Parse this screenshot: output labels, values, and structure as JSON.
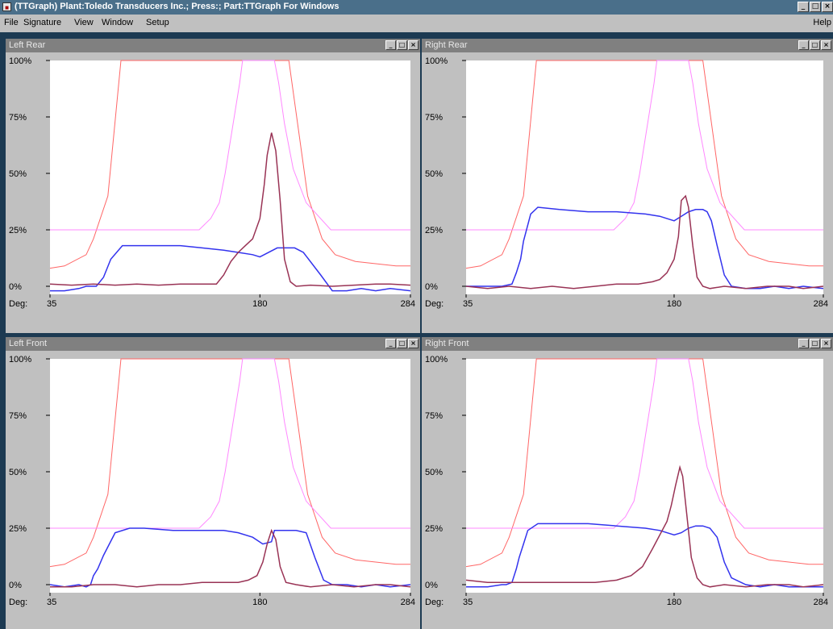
{
  "window": {
    "title": "(TTGraph) Plant:Toledo Transducers Inc.; Press:; Part:TTGraph For Windows",
    "controls": [
      "_",
      "□",
      "×"
    ]
  },
  "menu": {
    "items": [
      "File",
      "Signature",
      "View",
      "Window",
      "Setup"
    ],
    "help": "Help"
  },
  "colors": {
    "limit_curve": "#ff6666",
    "envelope_curve": "#ff88ff",
    "signature_a": "#3333ee",
    "signature_b": "#993355"
  },
  "axis": {
    "y_ticks": [
      "100%",
      "75%",
      "50%",
      "25%",
      "0%"
    ],
    "x_prefix": "Deg:",
    "x_ticks": [
      "35",
      "180",
      "284"
    ]
  },
  "panels": [
    {
      "title": "Left Rear",
      "chart_data": {
        "type": "line",
        "xlim": [
          35,
          284
        ],
        "ylim": [
          0,
          100
        ],
        "series": [
          {
            "role": "limit",
            "x": [
              35,
              45,
              60,
              65,
              75,
              84,
              200,
              213,
              223,
              232,
              246,
              260,
              274,
              284
            ],
            "y": [
              8,
              9,
              14,
              21,
              40,
              100,
              100,
              40,
              21,
              14,
              11,
              10,
              9,
              9
            ]
          },
          {
            "role": "envelope",
            "x": [
              35,
              138,
              146,
              152,
              156,
              161,
              166,
              168,
              190,
              193,
              197,
              203,
              212,
              229,
              284
            ],
            "y": [
              25,
              25,
              30,
              37,
              50,
              70,
              90,
              100,
              100,
              90,
              72,
              52,
              37,
              25,
              25
            ]
          },
          {
            "role": "signature_a",
            "x": [
              35,
              45,
              55,
              60,
              67,
              72,
              77,
              85,
              100,
              125,
              140,
              155,
              165,
              175,
              180,
              192,
              198,
              204,
              210,
              222,
              230,
              240,
              250,
              260,
              270,
              284
            ],
            "y": [
              -2,
              -2,
              -1,
              0,
              0,
              4,
              12,
              18,
              18,
              18,
              17,
              16,
              15,
              14,
              13,
              17,
              17,
              17,
              15,
              5,
              -2,
              -2,
              -1,
              -2,
              -1,
              -2
            ]
          },
          {
            "role": "signature_b",
            "x": [
              35,
              50,
              65,
              80,
              95,
              110,
              125,
              140,
              150,
              155,
              160,
              165,
              170,
              175,
              180,
              183,
              185,
              188,
              191,
              194,
              197,
              201,
              205,
              215,
              230,
              245,
              260,
              270,
              284
            ],
            "y": [
              1,
              0.5,
              1,
              0.5,
              1,
              0.5,
              1,
              1,
              1,
              5,
              11,
              15,
              18,
              21,
              30,
              45,
              58,
              68,
              60,
              38,
              12,
              2,
              0,
              0.5,
              0,
              0.5,
              1,
              1,
              0.5
            ]
          }
        ]
      }
    },
    {
      "title": "Right Rear",
      "chart_data": {
        "type": "line",
        "xlim": [
          35,
          284
        ],
        "ylim": [
          0,
          100
        ],
        "series": [
          {
            "role": "limit",
            "x": [
              35,
              45,
              60,
              65,
              75,
              84,
              200,
              213,
              223,
              232,
              246,
              260,
              274,
              284
            ],
            "y": [
              8,
              9,
              14,
              21,
              40,
              100,
              100,
              40,
              21,
              14,
              11,
              10,
              9,
              9
            ]
          },
          {
            "role": "envelope",
            "x": [
              35,
              138,
              146,
              152,
              156,
              161,
              166,
              168,
              190,
              193,
              197,
              203,
              212,
              229,
              284
            ],
            "y": [
              25,
              25,
              30,
              37,
              50,
              70,
              90,
              100,
              100,
              90,
              72,
              52,
              37,
              25,
              25
            ]
          },
          {
            "role": "signature_a",
            "x": [
              35,
              50,
              60,
              67,
              70,
              73,
              75,
              80,
              85,
              100,
              120,
              140,
              160,
              170,
              180,
              185,
              190,
              195,
              200,
              203,
              206,
              210,
              215,
              220,
              230,
              240,
              250,
              260,
              270,
              284
            ],
            "y": [
              0,
              0,
              0,
              1,
              6,
              12,
              20,
              32,
              35,
              34,
              33,
              33,
              32,
              31,
              29,
              31,
              33,
              34,
              34,
              33,
              29,
              18,
              5,
              0,
              -1,
              -1,
              0,
              -1,
              0,
              -1
            ]
          },
          {
            "role": "signature_b",
            "x": [
              35,
              50,
              65,
              80,
              95,
              110,
              125,
              140,
              155,
              165,
              170,
              175,
              180,
              183,
              185,
              188,
              190,
              193,
              196,
              200,
              205,
              215,
              230,
              245,
              260,
              270,
              284
            ],
            "y": [
              0,
              -1,
              0,
              -1,
              0,
              -1,
              0,
              1,
              1,
              2,
              3,
              6,
              12,
              22,
              38,
              40,
              35,
              18,
              4,
              0,
              -1,
              0,
              -1,
              0,
              0,
              -1,
              0
            ]
          }
        ]
      }
    },
    {
      "title": "Left Front",
      "chart_data": {
        "type": "line",
        "xlim": [
          35,
          284
        ],
        "ylim": [
          0,
          100
        ],
        "series": [
          {
            "role": "limit",
            "x": [
              35,
              45,
              60,
              65,
              75,
              84,
              200,
              213,
              223,
              232,
              246,
              260,
              274,
              284
            ],
            "y": [
              8,
              9,
              14,
              21,
              40,
              100,
              100,
              40,
              21,
              14,
              11,
              10,
              9,
              9
            ]
          },
          {
            "role": "envelope",
            "x": [
              35,
              138,
              146,
              152,
              156,
              161,
              166,
              168,
              190,
              193,
              197,
              203,
              212,
              229,
              284
            ],
            "y": [
              25,
              25,
              30,
              37,
              50,
              70,
              90,
              100,
              100,
              90,
              72,
              52,
              37,
              25,
              25
            ]
          },
          {
            "role": "signature_a",
            "x": [
              35,
              45,
              55,
              60,
              63,
              65,
              68,
              72,
              80,
              90,
              100,
              120,
              140,
              155,
              165,
              175,
              182,
              188,
              190,
              198,
              205,
              212,
              218,
              224,
              230,
              240,
              250,
              260,
              270,
              284
            ],
            "y": [
              0,
              -1,
              0,
              -1,
              0,
              4,
              7,
              13,
              23,
              25,
              25,
              24,
              24,
              24,
              23,
              21,
              18,
              19,
              24,
              24,
              24,
              23,
              12,
              2,
              0,
              0,
              -1,
              0,
              -1,
              0
            ]
          },
          {
            "role": "signature_b",
            "x": [
              35,
              50,
              65,
              80,
              95,
              110,
              125,
              140,
              155,
              165,
              172,
              178,
              182,
              185,
              188,
              191,
              194,
              198,
              205,
              215,
              230,
              245,
              260,
              270,
              284
            ],
            "y": [
              -1,
              -1,
              0,
              0,
              -1,
              0,
              0,
              1,
              1,
              1,
              2,
              4,
              10,
              18,
              24,
              20,
              8,
              1,
              0,
              -1,
              0,
              -1,
              0,
              0,
              -1
            ]
          }
        ]
      }
    },
    {
      "title": "Right Front",
      "chart_data": {
        "type": "line",
        "xlim": [
          35,
          284
        ],
        "ylim": [
          0,
          100
        ],
        "series": [
          {
            "role": "limit",
            "x": [
              35,
              45,
              60,
              65,
              75,
              84,
              200,
              213,
              223,
              232,
              246,
              260,
              274,
              284
            ],
            "y": [
              8,
              9,
              14,
              21,
              40,
              100,
              100,
              40,
              21,
              14,
              11,
              10,
              9,
              9
            ]
          },
          {
            "role": "envelope",
            "x": [
              35,
              138,
              146,
              152,
              156,
              161,
              166,
              168,
              190,
              193,
              197,
              203,
              212,
              229,
              284
            ],
            "y": [
              25,
              25,
              30,
              37,
              50,
              70,
              90,
              100,
              100,
              90,
              72,
              52,
              37,
              25,
              25
            ]
          },
          {
            "role": "signature_a",
            "x": [
              35,
              50,
              60,
              63,
              67,
              70,
              72,
              75,
              78,
              85,
              100,
              120,
              140,
              160,
              170,
              180,
              185,
              190,
              195,
              200,
              205,
              210,
              215,
              220,
              230,
              240,
              250,
              260,
              270,
              284
            ],
            "y": [
              -1,
              -1,
              0,
              0,
              1,
              7,
              12,
              18,
              24,
              27,
              27,
              27,
              26,
              25,
              24,
              22,
              23,
              25,
              26,
              26,
              25,
              21,
              10,
              3,
              0,
              -1,
              0,
              -1,
              -1,
              -1
            ]
          },
          {
            "role": "signature_b",
            "x": [
              35,
              50,
              65,
              80,
              95,
              110,
              125,
              140,
              150,
              158,
              165,
              170,
              175,
              178,
              181,
              184,
              186,
              189,
              192,
              196,
              200,
              205,
              215,
              230,
              245,
              260,
              270,
              284
            ],
            "y": [
              2,
              1,
              1,
              1,
              1,
              1,
              1,
              2,
              4,
              8,
              16,
              22,
              28,
              35,
              44,
              52,
              48,
              30,
              12,
              3,
              0,
              -1,
              0,
              -1,
              0,
              0,
              -1,
              0
            ]
          }
        ]
      }
    }
  ]
}
